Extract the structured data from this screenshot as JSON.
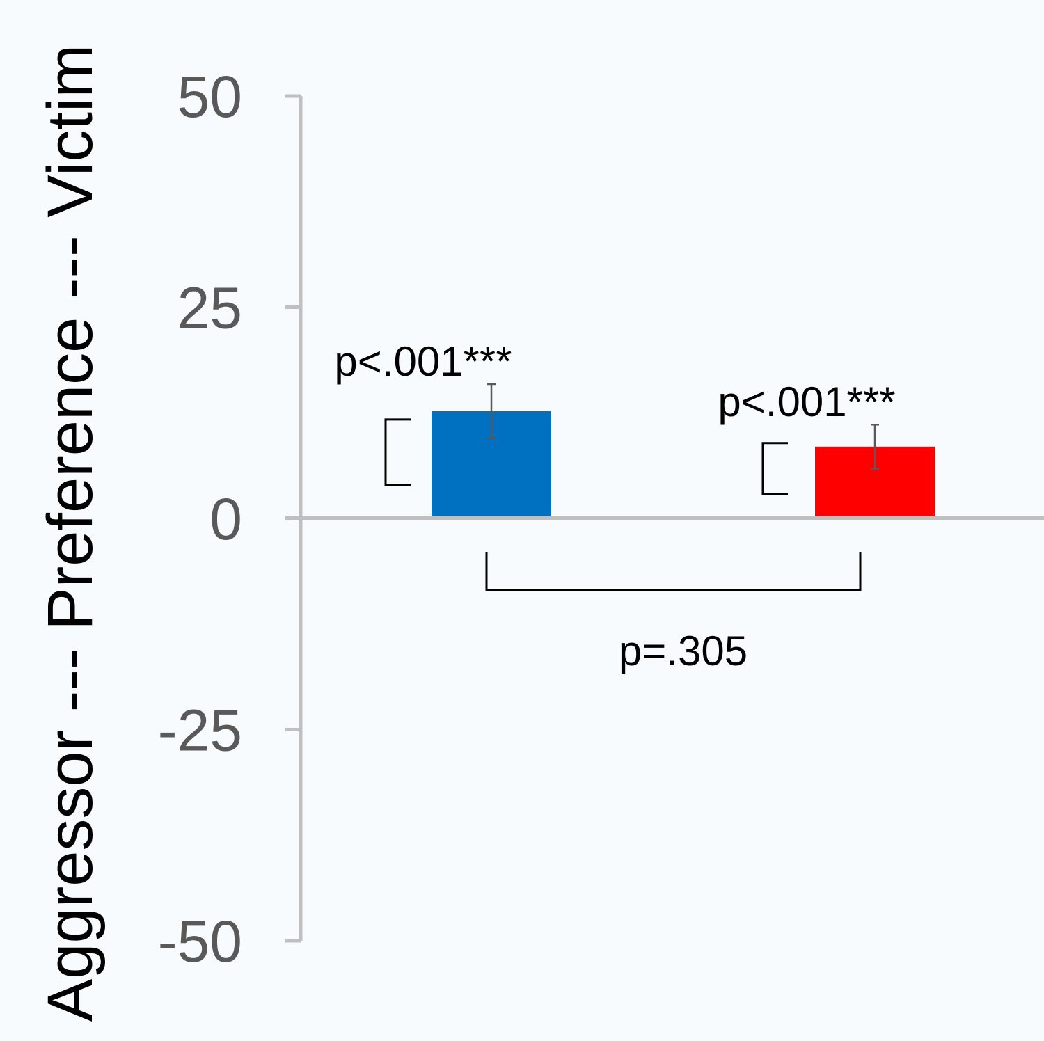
{
  "chart_data": {
    "type": "bar",
    "title": "",
    "xlabel": "",
    "ylabel": "Aggressor --- Preference --- Victim",
    "ylim": [
      -50,
      50
    ],
    "yticks": [
      50,
      25,
      0,
      -25,
      -50
    ],
    "ytick_labels": [
      "50",
      "25",
      "0",
      "-25",
      "-50"
    ],
    "grid": false,
    "legend": "none",
    "axis_color": "#bfbfbf",
    "bars": [
      {
        "value": 12.7,
        "error": 3.2,
        "color": "#0070c0",
        "p_label": "p<.001***"
      },
      {
        "value": 8.5,
        "error": 2.6,
        "color": "#ff0000",
        "p_label": "p<.001***"
      }
    ],
    "comparison": {
      "label": "p=.305"
    }
  }
}
